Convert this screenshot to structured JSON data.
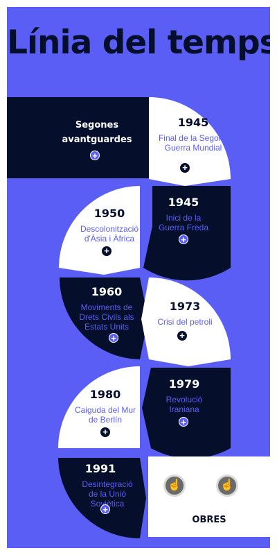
{
  "title": "Línia del temps",
  "colors": {
    "background": "#5b5ef4",
    "dark": "#050f2b",
    "light": "#ffffff",
    "accent": "#5b5ef4"
  },
  "intro": {
    "label": "Segones avantguardes",
    "icon": "plus-icon"
  },
  "events": [
    {
      "year": "1945",
      "description": "Final de la Segona Guerra Mundial",
      "icon": "plus-icon"
    },
    {
      "year": "1945",
      "description": "Inici de la Guerra Freda",
      "icon": "plus-icon"
    },
    {
      "year": "1950",
      "description": "Descolonització d'Àsia i Àfrica",
      "icon": "plus-icon"
    },
    {
      "year": "1960",
      "description": "Moviments de Drets Civils als Estats Units",
      "icon": "plus-icon"
    },
    {
      "year": "1973",
      "description": "Crisi del petroli",
      "icon": "plus-icon"
    },
    {
      "year": "1979",
      "description": "Revolució Iraniana",
      "icon": "plus-icon"
    },
    {
      "year": "1980",
      "description": "Caiguda del Mur de Berlín",
      "icon": "plus-icon"
    },
    {
      "year": "1991",
      "description": "Desintegració de la Unió Soviètica",
      "icon": "plus-icon"
    }
  ],
  "obres": {
    "label": "OBRES",
    "icons": [
      "pointer-hand-icon",
      "pointer-hand-icon"
    ]
  }
}
